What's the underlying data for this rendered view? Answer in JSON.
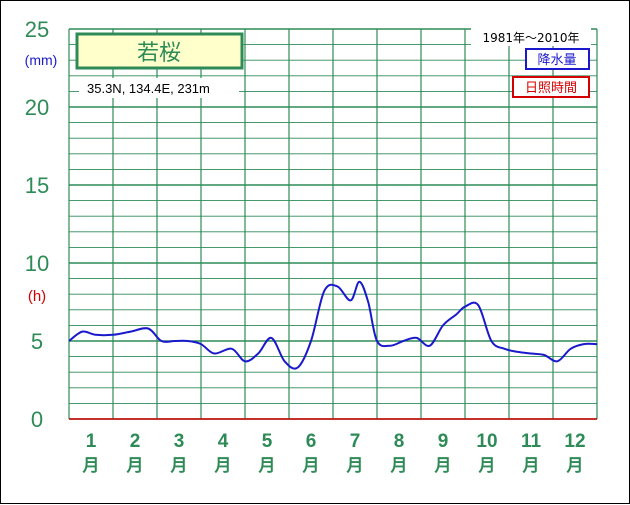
{
  "chart_data": {
    "type": "line",
    "station": "若桜",
    "location": "35.3N,  134.4E,  231m",
    "period": "1981年〜2010年",
    "legend": {
      "precip": "降水量",
      "sun": "日照時間"
    },
    "left_unit_precip": "(mm)",
    "left_unit_sun": "(h)",
    "y_ticks": [
      "0",
      "5",
      "10",
      "15",
      "20",
      "25"
    ],
    "ylim": [
      0,
      25
    ],
    "x_months": [
      {
        "num": "1",
        "unit": "月"
      },
      {
        "num": "2",
        "unit": "月"
      },
      {
        "num": "3",
        "unit": "月"
      },
      {
        "num": "4",
        "unit": "月"
      },
      {
        "num": "5",
        "unit": "月"
      },
      {
        "num": "6",
        "unit": "月"
      },
      {
        "num": "7",
        "unit": "月"
      },
      {
        "num": "8",
        "unit": "月"
      },
      {
        "num": "9",
        "unit": "月"
      },
      {
        "num": "10",
        "unit": "月"
      },
      {
        "num": "11",
        "unit": "月"
      },
      {
        "num": "12",
        "unit": "月"
      }
    ],
    "series": [
      {
        "name": "降水量",
        "color": "#1a1acc",
        "x": [
          0.0,
          0.3,
          0.6,
          1.0,
          1.4,
          1.8,
          2.1,
          2.4,
          2.7,
          3.0,
          3.3,
          3.7,
          4.0,
          4.3,
          4.6,
          4.9,
          5.2,
          5.5,
          5.8,
          6.1,
          6.4,
          6.6,
          6.8,
          7.0,
          7.3,
          7.6,
          7.9,
          8.2,
          8.5,
          8.8,
          9.0,
          9.3,
          9.6,
          9.9,
          10.2,
          10.5,
          10.8,
          11.1,
          11.4,
          11.7,
          12.0
        ],
        "values": [
          5.0,
          5.6,
          5.4,
          5.4,
          5.6,
          5.8,
          5.0,
          5.0,
          5.0,
          4.8,
          4.2,
          4.5,
          3.7,
          4.2,
          5.2,
          3.7,
          3.3,
          5.0,
          8.2,
          8.5,
          7.6,
          8.8,
          7.5,
          5.0,
          4.7,
          5.0,
          5.2,
          4.7,
          6.0,
          6.7,
          7.2,
          7.3,
          5.0,
          4.5,
          4.3,
          4.2,
          4.1,
          3.7,
          4.5,
          4.8,
          4.8
        ]
      }
    ]
  }
}
